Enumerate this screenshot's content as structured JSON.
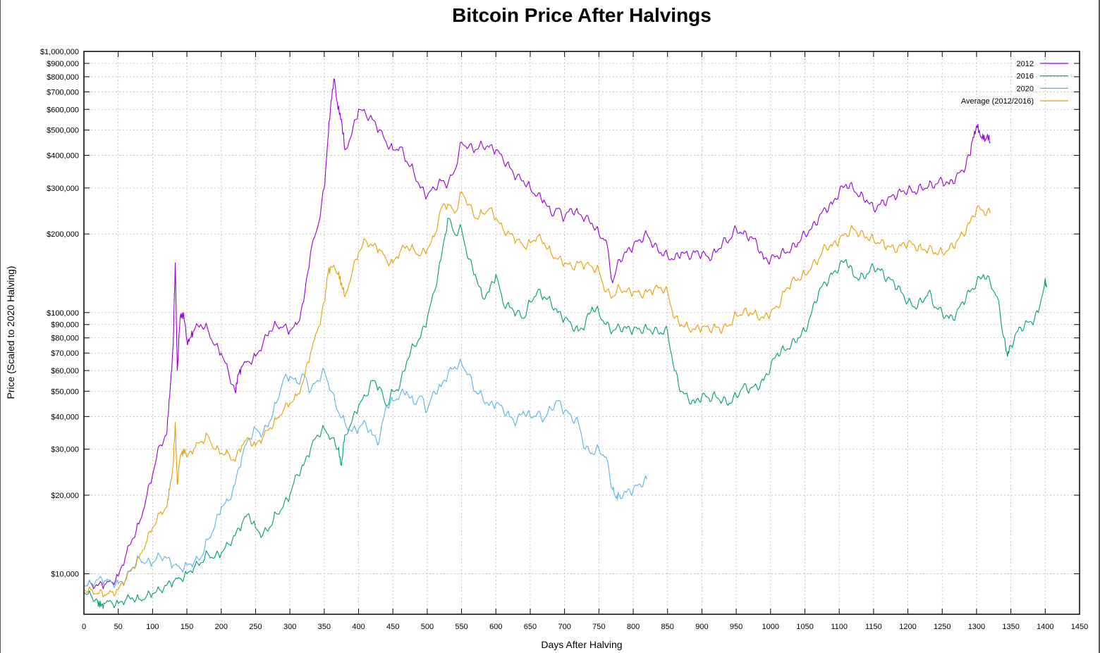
{
  "chart_data": {
    "type": "line",
    "title": "Bitcoin Price After Halvings",
    "xlabel": "Days After Halving",
    "ylabel": "Price (Scaled to 2020 Halving)",
    "xlim": [
      0,
      1450
    ],
    "ylim": [
      7000,
      1000000
    ],
    "y_scale": "log",
    "grid": true,
    "legend_position": "top-right",
    "x_ticks": [
      0,
      50,
      100,
      150,
      200,
      250,
      300,
      350,
      400,
      450,
      500,
      550,
      600,
      650,
      700,
      750,
      800,
      850,
      900,
      950,
      1000,
      1050,
      1100,
      1150,
      1200,
      1250,
      1300,
      1350,
      1400,
      1450
    ],
    "x_tick_labels": [
      "0",
      "50",
      "100",
      "150",
      "200",
      "250",
      "300",
      "350",
      "400",
      "450",
      "500",
      "550",
      "600",
      "650",
      "700",
      "750",
      "800",
      "850",
      "900",
      "950",
      "1000",
      "1050",
      "1100",
      "1150",
      "1200",
      "1250",
      "1300",
      "1350",
      "1400",
      "1450"
    ],
    "y_ticks": [
      10000,
      20000,
      30000,
      40000,
      50000,
      60000,
      70000,
      80000,
      90000,
      100000,
      200000,
      300000,
      400000,
      500000,
      600000,
      700000,
      800000,
      900000,
      1000000
    ],
    "y_tick_labels": [
      "$10,000",
      "$20,000",
      "$30,000",
      "$40,000",
      "$50,000",
      "$60,000",
      "$70,000",
      "$80,000",
      "$90,000",
      "$100,000",
      "$200,000",
      "$300,000",
      "$400,000",
      "$500,000",
      "$600,000",
      "$700,000",
      "$800,000",
      "$900,000",
      "$1,000,000"
    ],
    "series": [
      {
        "name": "2012",
        "color": "#9400d3",
        "x": [
          0,
          10,
          20,
          30,
          40,
          50,
          60,
          70,
          80,
          90,
          100,
          110,
          120,
          125,
          130,
          133,
          136,
          140,
          145,
          150,
          155,
          160,
          170,
          180,
          190,
          200,
          210,
          220,
          225,
          230,
          240,
          250,
          260,
          270,
          280,
          290,
          300,
          310,
          320,
          330,
          340,
          350,
          355,
          360,
          365,
          370,
          375,
          380,
          390,
          400,
          410,
          420,
          430,
          440,
          450,
          460,
          470,
          480,
          490,
          500,
          510,
          520,
          530,
          540,
          550,
          560,
          570,
          580,
          590,
          600,
          610,
          620,
          630,
          640,
          650,
          660,
          670,
          680,
          690,
          700,
          710,
          720,
          730,
          740,
          750,
          760,
          770,
          780,
          790,
          800,
          810,
          820,
          830,
          840,
          850,
          860,
          870,
          880,
          890,
          900,
          910,
          920,
          930,
          940,
          950,
          960,
          970,
          980,
          990,
          1000,
          1010,
          1020,
          1030,
          1040,
          1050,
          1060,
          1070,
          1080,
          1090,
          1100,
          1110,
          1120,
          1130,
          1140,
          1150,
          1160,
          1170,
          1180,
          1190,
          1200,
          1210,
          1220,
          1230,
          1240,
          1250,
          1260,
          1270,
          1280,
          1290,
          1295,
          1300,
          1305,
          1310,
          1315,
          1320
        ],
        "y": [
          9000,
          9200,
          9000,
          9100,
          9300,
          9800,
          11500,
          13500,
          15500,
          19000,
          24000,
          31000,
          34000,
          48000,
          75000,
          155000,
          60000,
          95000,
          100000,
          78000,
          80000,
          85000,
          90000,
          87000,
          75000,
          70000,
          60000,
          50000,
          58000,
          62000,
          65000,
          68000,
          75000,
          85000,
          90000,
          88000,
          85000,
          90000,
          110000,
          170000,
          210000,
          300000,
          450000,
          650000,
          780000,
          600000,
          550000,
          420000,
          480000,
          600000,
          580000,
          550000,
          500000,
          450000,
          420000,
          430000,
          380000,
          350000,
          300000,
          280000,
          300000,
          320000,
          310000,
          350000,
          450000,
          430000,
          420000,
          440000,
          430000,
          420000,
          390000,
          360000,
          330000,
          320000,
          300000,
          280000,
          270000,
          240000,
          250000,
          230000,
          250000,
          240000,
          230000,
          220000,
          200000,
          190000,
          130000,
          160000,
          170000,
          180000,
          190000,
          200000,
          180000,
          170000,
          165000,
          160000,
          170000,
          165000,
          170000,
          168000,
          162000,
          170000,
          185000,
          190000,
          210000,
          200000,
          195000,
          185000,
          160000,
          160000,
          165000,
          170000,
          175000,
          185000,
          200000,
          210000,
          230000,
          250000,
          260000,
          290000,
          310000,
          300000,
          280000,
          270000,
          250000,
          260000,
          270000,
          280000,
          290000,
          295000,
          290000,
          300000,
          305000,
          310000,
          320000,
          310000,
          330000,
          350000,
          400000,
          470000,
          520000,
          480000,
          460000,
          470000,
          450000
        ]
      },
      {
        "name": "2016",
        "color": "#009e73",
        "x": [
          0,
          10,
          20,
          25,
          30,
          40,
          50,
          60,
          70,
          80,
          90,
          100,
          110,
          120,
          130,
          140,
          150,
          160,
          170,
          180,
          190,
          200,
          210,
          220,
          230,
          240,
          250,
          260,
          270,
          280,
          290,
          300,
          310,
          320,
          330,
          340,
          350,
          360,
          370,
          375,
          380,
          390,
          400,
          410,
          420,
          430,
          440,
          450,
          460,
          470,
          480,
          490,
          500,
          510,
          520,
          530,
          540,
          550,
          560,
          570,
          580,
          590,
          600,
          610,
          620,
          630,
          640,
          650,
          660,
          670,
          680,
          690,
          700,
          710,
          720,
          730,
          740,
          750,
          760,
          770,
          780,
          790,
          800,
          810,
          820,
          830,
          840,
          850,
          860,
          870,
          880,
          890,
          900,
          910,
          920,
          930,
          940,
          950,
          960,
          970,
          980,
          990,
          1000,
          1010,
          1020,
          1030,
          1040,
          1050,
          1060,
          1070,
          1080,
          1090,
          1100,
          1110,
          1120,
          1130,
          1140,
          1150,
          1160,
          1170,
          1180,
          1190,
          1200,
          1210,
          1220,
          1230,
          1240,
          1250,
          1260,
          1270,
          1280,
          1290,
          1300,
          1310,
          1320,
          1330,
          1340,
          1345,
          1350,
          1360,
          1370,
          1380,
          1390,
          1400,
          1402
        ],
        "y": [
          8500,
          8300,
          7900,
          7500,
          7700,
          7800,
          7700,
          7900,
          8100,
          8000,
          8100,
          8400,
          8700,
          9000,
          9300,
          9600,
          10000,
          10500,
          11000,
          12000,
          11500,
          12000,
          13000,
          14000,
          15500,
          17000,
          15000,
          14000,
          15000,
          17000,
          18000,
          20000,
          24000,
          26000,
          30000,
          34000,
          36000,
          33000,
          30000,
          26000,
          34000,
          38000,
          44000,
          48000,
          55000,
          52000,
          44000,
          50000,
          52000,
          65000,
          75000,
          80000,
          95000,
          120000,
          160000,
          230000,
          200000,
          210000,
          160000,
          140000,
          115000,
          120000,
          140000,
          110000,
          105000,
          100000,
          95000,
          110000,
          120000,
          115000,
          110000,
          100000,
          95000,
          90000,
          85000,
          90000,
          105000,
          100000,
          90000,
          85000,
          88000,
          87000,
          86000,
          86000,
          87000,
          85000,
          84000,
          85000,
          60000,
          50000,
          47000,
          45000,
          48000,
          47000,
          48000,
          46000,
          45000,
          48000,
          52000,
          51000,
          52000,
          55000,
          62000,
          70000,
          72000,
          75000,
          80000,
          85000,
          100000,
          120000,
          130000,
          140000,
          150000,
          160000,
          140000,
          135000,
          140000,
          150000,
          145000,
          135000,
          130000,
          120000,
          110000,
          105000,
          110000,
          120000,
          105000,
          100000,
          95000,
          98000,
          110000,
          120000,
          130000,
          140000,
          130000,
          115000,
          80000,
          68000,
          75000,
          85000,
          90000,
          92000,
          100000,
          135000,
          125000
        ]
      },
      {
        "name": "2020",
        "color": "#56b4e9",
        "x": [
          0,
          10,
          20,
          30,
          40,
          50,
          60,
          70,
          80,
          90,
          100,
          110,
          120,
          130,
          140,
          150,
          160,
          170,
          180,
          190,
          200,
          210,
          220,
          230,
          240,
          250,
          260,
          270,
          280,
          290,
          300,
          310,
          320,
          330,
          340,
          350,
          360,
          370,
          380,
          390,
          400,
          410,
          420,
          430,
          440,
          450,
          460,
          470,
          480,
          490,
          500,
          510,
          520,
          530,
          540,
          550,
          560,
          570,
          580,
          590,
          600,
          610,
          620,
          630,
          640,
          650,
          660,
          670,
          680,
          690,
          700,
          710,
          720,
          730,
          740,
          750,
          760,
          770,
          775,
          780,
          790,
          800,
          810,
          820
        ],
        "y": [
          9000,
          9200,
          9500,
          9400,
          9300,
          9200,
          9400,
          10500,
          11500,
          11000,
          11000,
          11800,
          11500,
          10800,
          10500,
          10800,
          11000,
          11500,
          13500,
          15000,
          18000,
          19000,
          22000,
          28000,
          33000,
          36000,
          34000,
          38000,
          45000,
          55000,
          57000,
          54000,
          58000,
          50000,
          55000,
          60000,
          50000,
          42000,
          38000,
          35000,
          36000,
          38000,
          34000,
          32000,
          44000,
          46000,
          48000,
          50000,
          45000,
          48000,
          42000,
          50000,
          52000,
          58000,
          62000,
          64000,
          58000,
          50000,
          48000,
          44000,
          45000,
          43000,
          40000,
          38000,
          42000,
          40000,
          41000,
          39000,
          43000,
          46000,
          42000,
          40000,
          38000,
          30000,
          29000,
          30000,
          28000,
          21000,
          19500,
          20000,
          20500,
          21000,
          22000,
          23000
        ]
      },
      {
        "name": "Average (2012/2016)",
        "color": "#e69f00",
        "x": [
          0,
          10,
          20,
          30,
          40,
          50,
          60,
          70,
          80,
          90,
          100,
          110,
          120,
          125,
          130,
          133,
          136,
          140,
          145,
          150,
          160,
          170,
          180,
          190,
          200,
          210,
          220,
          230,
          240,
          250,
          260,
          270,
          280,
          290,
          300,
          310,
          320,
          330,
          340,
          350,
          355,
          360,
          370,
          375,
          380,
          390,
          400,
          410,
          420,
          430,
          440,
          450,
          460,
          470,
          480,
          490,
          500,
          510,
          520,
          530,
          540,
          550,
          560,
          570,
          580,
          590,
          600,
          610,
          620,
          630,
          640,
          650,
          660,
          670,
          680,
          690,
          700,
          710,
          720,
          730,
          740,
          750,
          760,
          770,
          780,
          790,
          800,
          810,
          820,
          830,
          840,
          850,
          860,
          870,
          880,
          890,
          900,
          910,
          920,
          930,
          940,
          950,
          960,
          970,
          980,
          990,
          1000,
          1010,
          1020,
          1030,
          1040,
          1050,
          1060,
          1070,
          1080,
          1090,
          1100,
          1110,
          1120,
          1130,
          1140,
          1150,
          1160,
          1170,
          1180,
          1190,
          1200,
          1210,
          1220,
          1230,
          1240,
          1250,
          1260,
          1270,
          1280,
          1290,
          1300,
          1310,
          1320
        ],
        "y": [
          8700,
          8700,
          8400,
          8300,
          8500,
          8700,
          9400,
          10500,
          11500,
          13000,
          15000,
          17000,
          18000,
          21000,
          26000,
          38000,
          22000,
          28000,
          30000,
          28000,
          30000,
          32000,
          34000,
          30000,
          29000,
          29000,
          27000,
          31000,
          33000,
          31000,
          33000,
          36000,
          39000,
          42000,
          45000,
          48000,
          55000,
          70000,
          85000,
          110000,
          140000,
          150000,
          140000,
          130000,
          115000,
          140000,
          170000,
          190000,
          180000,
          175000,
          160000,
          155000,
          170000,
          180000,
          175000,
          165000,
          175000,
          195000,
          250000,
          260000,
          240000,
          290000,
          260000,
          230000,
          240000,
          250000,
          230000,
          210000,
          200000,
          190000,
          180000,
          185000,
          195000,
          185000,
          170000,
          160000,
          155000,
          150000,
          155000,
          152000,
          150000,
          145000,
          120000,
          115000,
          125000,
          120000,
          120000,
          118000,
          120000,
          122000,
          125000,
          120000,
          95000,
          90000,
          88000,
          86000,
          88000,
          87000,
          88000,
          86000,
          90000,
          98000,
          100000,
          100000,
          98000,
          95000,
          100000,
          105000,
          120000,
          130000,
          135000,
          140000,
          150000,
          160000,
          180000,
          180000,
          190000,
          200000,
          210000,
          200000,
          195000,
          190000,
          185000,
          180000,
          175000,
          180000,
          185000,
          180000,
          175000,
          175000,
          170000,
          170000,
          175000,
          185000,
          200000,
          220000,
          250000,
          245000,
          240000
        ]
      }
    ]
  }
}
